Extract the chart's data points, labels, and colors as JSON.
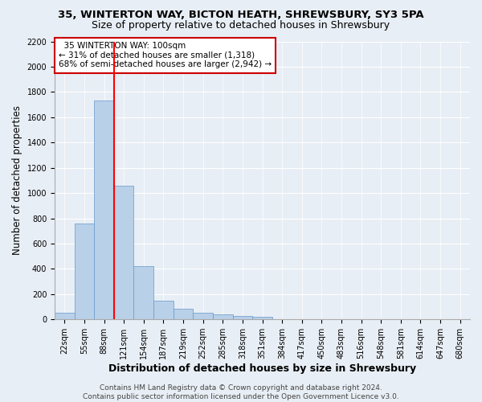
{
  "title_line1": "35, WINTERTON WAY, BICTON HEATH, SHREWSBURY, SY3 5PA",
  "title_line2": "Size of property relative to detached houses in Shrewsbury",
  "xlabel": "Distribution of detached houses by size in Shrewsbury",
  "ylabel": "Number of detached properties",
  "bin_labels": [
    "22sqm",
    "55sqm",
    "88sqm",
    "121sqm",
    "154sqm",
    "187sqm",
    "219sqm",
    "252sqm",
    "285sqm",
    "318sqm",
    "351sqm",
    "384sqm",
    "417sqm",
    "450sqm",
    "483sqm",
    "516sqm",
    "548sqm",
    "581sqm",
    "614sqm",
    "647sqm",
    "680sqm"
  ],
  "bar_heights": [
    55,
    760,
    1730,
    1060,
    420,
    150,
    85,
    50,
    42,
    30,
    20,
    0,
    0,
    0,
    0,
    0,
    0,
    0,
    0,
    0,
    0
  ],
  "bar_color": "#b8d0e8",
  "bar_edge_color": "#6699cc",
  "red_line_bin": 2,
  "annotation_text": "  35 WINTERTON WAY: 100sqm\n← 31% of detached houses are smaller (1,318)\n68% of semi-detached houses are larger (2,942) →",
  "annotation_box_facecolor": "#ffffff",
  "annotation_box_edgecolor": "#cc0000",
  "ylim_max": 2200,
  "yticks": [
    0,
    200,
    400,
    600,
    800,
    1000,
    1200,
    1400,
    1600,
    1800,
    2000,
    2200
  ],
  "footer_text": "Contains HM Land Registry data © Crown copyright and database right 2024.\nContains public sector information licensed under the Open Government Licence v3.0.",
  "bg_color": "#e8eef5",
  "grid_color": "#ffffff",
  "title1_fontsize": 9.5,
  "title2_fontsize": 9,
  "ylabel_fontsize": 8.5,
  "xlabel_fontsize": 9,
  "tick_fontsize": 7,
  "annot_fontsize": 7.5,
  "footer_fontsize": 6.5
}
